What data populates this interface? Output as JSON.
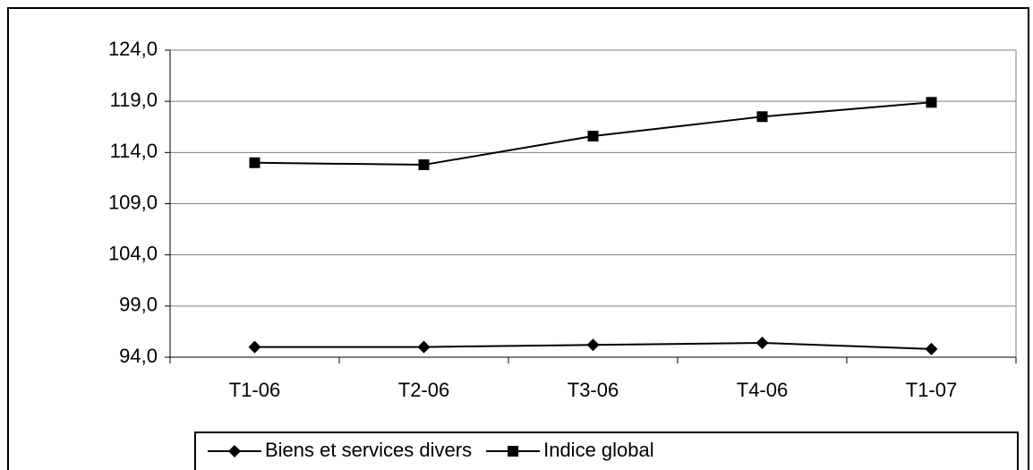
{
  "chart_data": {
    "type": "line",
    "categories": [
      "T1-06",
      "T2-06",
      "T3-06",
      "T4-06",
      "T1-07"
    ],
    "series": [
      {
        "name": "Biens et services divers",
        "color": "#000000",
        "marker": "diamond",
        "values": [
          95.0,
          95.0,
          95.2,
          95.4,
          94.8
        ]
      },
      {
        "name": "Indice global",
        "color": "#000000",
        "marker": "square",
        "values": [
          113.0,
          112.8,
          115.6,
          117.5,
          118.9
        ]
      }
    ],
    "ylim": [
      94,
      124
    ],
    "yticks": [
      {
        "value": 94,
        "label": "94,0"
      },
      {
        "value": 99,
        "label": "99,0"
      },
      {
        "value": 104,
        "label": "104,0"
      },
      {
        "value": 109,
        "label": "109,0"
      },
      {
        "value": 114,
        "label": "114,0"
      },
      {
        "value": 119,
        "label": "119,0"
      },
      {
        "value": 124,
        "label": "124,0"
      }
    ],
    "grid": true,
    "legend": "bottom"
  }
}
